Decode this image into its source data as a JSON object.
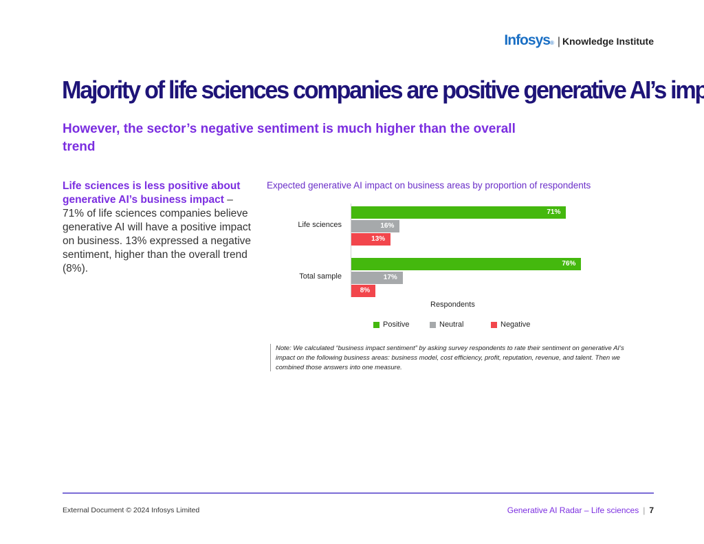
{
  "header": {
    "logo_brand": "Infosys",
    "logo_reg": "®",
    "logo_sep": "|",
    "logo_text": "Knowledge Institute"
  },
  "title": "Majority of life sciences companies are positive generative AI’s impact",
  "subtitle": "However, the sector’s negative sentiment is much higher than the overall trend",
  "body": {
    "highlight": "Life sciences is less positive about generative AI’s business impact",
    "text": " – 71% of life sciences companies believe generative AI will have a positive impact on business. 13% expressed a negative sentiment, higher than the overall trend (8%)."
  },
  "colors": {
    "positive": "#44b80e",
    "neutral": "#a6a9ab",
    "negative": "#f2464c"
  },
  "chart_data": {
    "type": "bar",
    "orientation": "horizontal",
    "title": "Expected generative AI impact on business areas by proportion of respondents",
    "xlabel": "Respondents",
    "ylabel": "",
    "xlim": [
      0,
      100
    ],
    "categories": [
      "Life sciences",
      "Total sample"
    ],
    "series": [
      {
        "name": "Positive",
        "values": [
          71,
          76
        ],
        "labels": [
          "71%",
          "76%"
        ]
      },
      {
        "name": "Neutral",
        "values": [
          16,
          17
        ],
        "labels": [
          "16%",
          "17%"
        ]
      },
      {
        "name": "Negative",
        "values": [
          13,
          8
        ],
        "labels": [
          "13%",
          "8%"
        ]
      }
    ],
    "legend_position": "bottom"
  },
  "note": "Note: We calculated “business impact sentiment” by asking survey respondents to rate their sentiment on generative AI’s impact on the following business areas: business model, cost efficiency, profit, reputation, revenue, and talent. Then we combined those answers into one measure.",
  "footer": {
    "left": "External Document © 2024 Infosys Limited",
    "right": "Generative AI Radar – Life sciences",
    "sep": "|",
    "page": "7"
  }
}
